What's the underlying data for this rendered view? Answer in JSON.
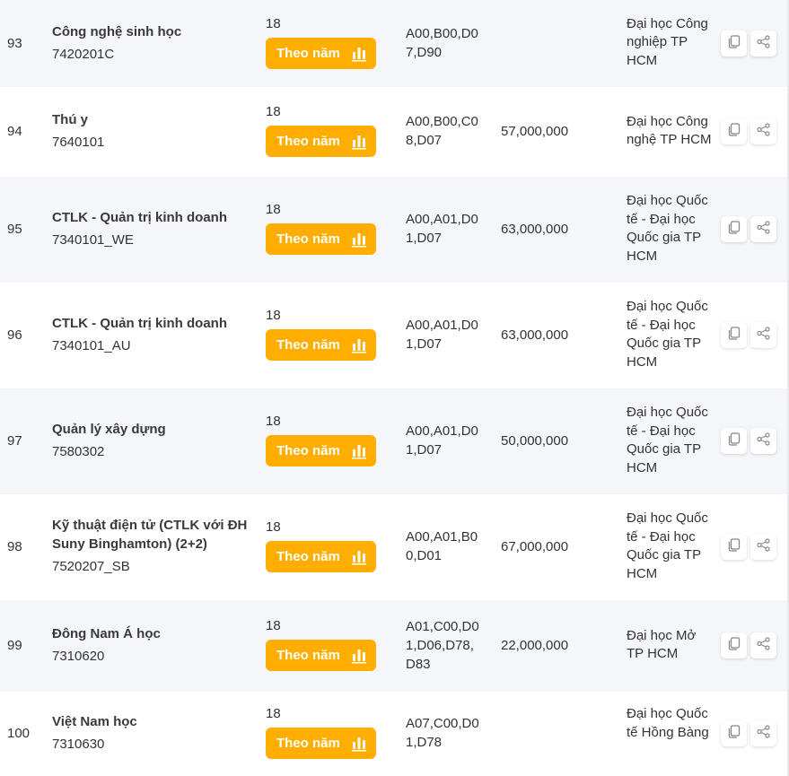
{
  "button_label": "Theo năm",
  "accent": "#ffae00",
  "rows": [
    {
      "no": "93",
      "name": "Công nghệ sinh học",
      "code": "7420201C",
      "score": "18",
      "combos": "A00,B00,D07,D90",
      "fee": "",
      "school": "Đại học Công nghiệp TP HCM",
      "h": 97
    },
    {
      "no": "94",
      "name": "Thú y",
      "code": "7640101",
      "score": "18",
      "combos": "A00,B00,C08,D07",
      "fee": "57,000,000",
      "school": "Đại học Công nghệ TP HCM",
      "h": 100
    },
    {
      "no": "95",
      "name": "CTLK - Quản trị kinh doanh",
      "code": "7340101_WE",
      "score": "18",
      "combos": "A00,A01,D01,D07",
      "fee": "63,000,000",
      "school": "Đại học Quốc tế - Đại học Quốc gia TP HCM",
      "h": 118
    },
    {
      "no": "96",
      "name": "CTLK - Quản trị kinh doanh",
      "code": "7340101_AU",
      "score": "18",
      "combos": "A00,A01,D01,D07",
      "fee": "63,000,000",
      "school": "Đại học Quốc tế - Đại học Quốc gia TP HCM",
      "h": 118
    },
    {
      "no": "97",
      "name": "Quản lý xây dựng",
      "code": "7580302",
      "score": "18",
      "combos": "A00,A01,D01,D07",
      "fee": "50,000,000",
      "school": "Đại học Quốc tế - Đại học Quốc gia TP HCM",
      "h": 118
    },
    {
      "no": "98",
      "name": "Kỹ thuật điện tử (CTLK với ĐH Suny Binghamton) (2+2)",
      "code": "7520207_SB",
      "score": "18",
      "combos": "A00,A01,B00,D01",
      "fee": "67,000,000",
      "school": "Đại học Quốc tế - Đại học Quốc gia TP HCM",
      "h": 118
    },
    {
      "no": "99",
      "name": "Đông Nam Á học",
      "code": "7310620",
      "score": "18",
      "combos": "A01,C00,D01,D06,D78,D83",
      "fee": "22,000,000",
      "school": "Đại học Mở TP HCM",
      "h": 102
    },
    {
      "no": "100",
      "name": "Việt Nam học",
      "code": "7310630",
      "score": "18",
      "combos": "A07,C00,D01,D78",
      "fee": "",
      "school": "Đại học Quốc tế Hồng Bàng",
      "h": 94
    }
  ]
}
